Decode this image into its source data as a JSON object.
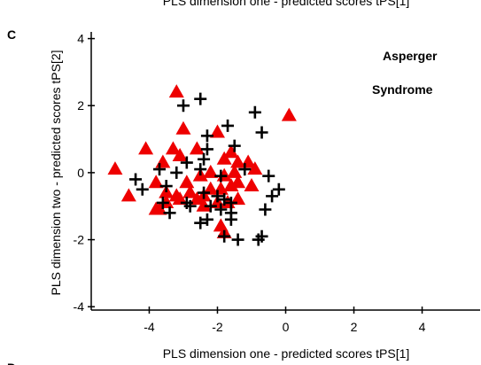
{
  "chart_data": {
    "type": "scatter",
    "panel_labels": [
      "C",
      "D"
    ],
    "xlabel": "PLS dimension one - predicted scores tPS[1]",
    "ylabel": "PLS dimension two - predicted scores tPS[2]",
    "annotation": [
      "Asperger",
      "Syndrome"
    ],
    "xlim": [
      -5.7,
      5.7
    ],
    "ylim": [
      -4.1,
      4.2
    ],
    "xticks": [
      -4,
      -2,
      0,
      2,
      4
    ],
    "yticks": [
      -4,
      -2,
      0,
      2,
      4
    ],
    "grid": false,
    "series": [
      {
        "marker": "triangle",
        "color": "#ee0000",
        "x": [
          -3.2,
          -3.0,
          -4.1,
          -5.0,
          -4.6,
          -3.3,
          -2.6,
          -2.0,
          -1.8,
          -1.6,
          -1.4,
          -1.1,
          -0.9,
          -3.6,
          -3.8,
          -3.5,
          -3.1,
          -2.9,
          -3.2,
          -2.6,
          -2.4,
          -2.2,
          -1.9,
          -1.6,
          -1.4,
          -1.0,
          -3.8,
          -3.7,
          -3.5,
          -3.1,
          -2.8,
          -2.5,
          -2.2,
          -1.8,
          -1.5,
          -1.9,
          -1.8,
          0.1,
          -1.7,
          -1.4,
          -2.0,
          -2.4
        ],
        "values": [
          2.4,
          1.3,
          0.7,
          0.1,
          -0.7,
          0.7,
          0.7,
          1.2,
          0.4,
          0.6,
          0.3,
          0.3,
          0.1,
          0.3,
          -0.3,
          -0.6,
          0.5,
          -0.3,
          -0.7,
          -0.8,
          -0.7,
          -0.5,
          -0.5,
          -0.4,
          -0.3,
          -0.4,
          -1.1,
          -1.1,
          -0.9,
          -0.8,
          -0.6,
          -0.1,
          0.0,
          -0.1,
          0.0,
          -1.6,
          -1.8,
          1.7,
          -0.9,
          -0.8,
          -0.9,
          -1.0
        ]
      },
      {
        "marker": "plus",
        "color": "#000000",
        "x": [
          -2.5,
          -3.0,
          -1.7,
          -0.9,
          -0.7,
          -2.3,
          -1.5,
          -2.9,
          -2.4,
          -2.3,
          -3.2,
          -3.7,
          -4.4,
          -4.2,
          -3.5,
          -2.5,
          -0.5,
          -3.6,
          -3.4,
          -2.9,
          -2.8,
          -2.4,
          -2.2,
          -2.0,
          -1.8,
          -1.6,
          -1.6,
          -1.9,
          -2.3,
          -1.6,
          -0.4,
          -0.2,
          -0.6,
          -2.5,
          -1.8,
          -1.4,
          -0.7,
          -0.8,
          -1.2,
          -1.9
        ],
        "values": [
          2.2,
          2.0,
          1.4,
          1.8,
          1.2,
          1.1,
          0.8,
          0.3,
          0.4,
          0.7,
          0.0,
          0.1,
          -0.2,
          -0.5,
          -0.4,
          0.1,
          -0.1,
          -0.9,
          -1.2,
          -0.9,
          -1.0,
          -0.6,
          -1.0,
          -0.7,
          -0.8,
          -0.9,
          -1.2,
          -1.1,
          -1.4,
          -1.4,
          -0.7,
          -0.5,
          -1.1,
          -1.5,
          -1.9,
          -2.0,
          -1.9,
          -2.0,
          0.1,
          -0.1
        ]
      }
    ]
  }
}
